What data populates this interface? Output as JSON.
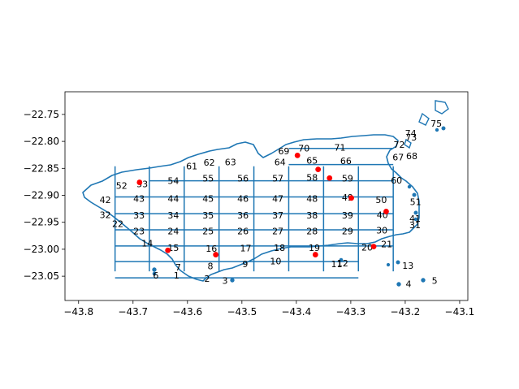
{
  "chart_data": {
    "type": "map",
    "title": "",
    "xlabel": "",
    "ylabel": "",
    "xlim": [
      -43.825,
      -43.085
    ],
    "ylim": [
      -23.095,
      -22.708
    ],
    "xticks": [
      -43.8,
      -43.7,
      -43.6,
      -43.5,
      -43.4,
      -43.3,
      -43.2,
      -43.1
    ],
    "yticks": [
      -23.05,
      -23.0,
      -22.95,
      -22.9,
      -22.85,
      -22.8,
      -22.75
    ],
    "xtick_labels": [
      "−43.8",
      "−43.7",
      "−43.6",
      "−43.5",
      "−43.4",
      "−43.3",
      "−43.2",
      "−43.1"
    ],
    "ytick_labels": [
      "−23.05",
      "−23.00",
      "−22.95",
      "−22.90",
      "−22.85",
      "−22.80",
      "−22.75"
    ],
    "colors": {
      "outline": "#1f77b4",
      "points": "#ff0000",
      "text": "#000000"
    },
    "grid_lines": {
      "vertical": [
        -43.733,
        -43.67,
        -43.606,
        -43.542,
        -43.478,
        -43.414,
        -43.35,
        -43.286,
        -43.222
      ],
      "horizontal": [
        -22.813,
        -22.843,
        -22.873,
        -22.903,
        -22.934,
        -22.964,
        -22.994,
        -23.023,
        -23.053
      ]
    },
    "cell_labels": [
      {
        "id": "1",
        "x": -43.62,
        "y": -23.048
      },
      {
        "id": "2",
        "x": -43.564,
        "y": -23.054
      },
      {
        "id": "3",
        "x": -43.531,
        "y": -23.058
      },
      {
        "id": "4",
        "x": -43.194,
        "y": -23.064
      },
      {
        "id": "5",
        "x": -43.146,
        "y": -23.058
      },
      {
        "id": "6",
        "x": -43.658,
        "y": -23.048
      },
      {
        "id": "7",
        "x": -43.617,
        "y": -23.033
      },
      {
        "id": "8",
        "x": -43.558,
        "y": -23.031
      },
      {
        "id": "9",
        "x": -43.494,
        "y": -23.027
      },
      {
        "id": "10",
        "x": -43.438,
        "y": -23.022
      },
      {
        "id": "11",
        "x": -43.326,
        "y": -23.027
      },
      {
        "id": "12",
        "x": -43.315,
        "y": -23.026
      },
      {
        "id": "13",
        "x": -43.195,
        "y": -23.03
      },
      {
        "id": "14",
        "x": -43.674,
        "y": -22.989
      },
      {
        "id": "15",
        "x": -43.626,
        "y": -22.997
      },
      {
        "id": "16",
        "x": -43.556,
        "y": -22.999
      },
      {
        "id": "17",
        "x": -43.493,
        "y": -22.998
      },
      {
        "id": "18",
        "x": -43.431,
        "y": -22.997
      },
      {
        "id": "19",
        "x": -43.367,
        "y": -22.997
      },
      {
        "id": "20",
        "x": -43.27,
        "y": -22.996
      },
      {
        "id": "21",
        "x": -43.234,
        "y": -22.99
      },
      {
        "id": "22",
        "x": -43.728,
        "y": -22.953
      },
      {
        "id": "23",
        "x": -43.689,
        "y": -22.966
      },
      {
        "id": "24",
        "x": -43.626,
        "y": -22.966
      },
      {
        "id": "25",
        "x": -43.562,
        "y": -22.966
      },
      {
        "id": "26",
        "x": -43.498,
        "y": -22.966
      },
      {
        "id": "27",
        "x": -43.434,
        "y": -22.966
      },
      {
        "id": "28",
        "x": -43.371,
        "y": -22.966
      },
      {
        "id": "29",
        "x": -43.306,
        "y": -22.966
      },
      {
        "id": "30",
        "x": -43.243,
        "y": -22.965
      },
      {
        "id": "31",
        "x": -43.182,
        "y": -22.955
      },
      {
        "id": "32",
        "x": -43.751,
        "y": -22.936
      },
      {
        "id": "33",
        "x": -43.689,
        "y": -22.937
      },
      {
        "id": "34",
        "x": -43.626,
        "y": -22.937
      },
      {
        "id": "35",
        "x": -43.562,
        "y": -22.937
      },
      {
        "id": "36",
        "x": -43.498,
        "y": -22.937
      },
      {
        "id": "37",
        "x": -43.434,
        "y": -22.937
      },
      {
        "id": "38",
        "x": -43.371,
        "y": -22.937
      },
      {
        "id": "39",
        "x": -43.306,
        "y": -22.937
      },
      {
        "id": "40",
        "x": -43.242,
        "y": -22.936
      },
      {
        "id": "41",
        "x": -43.182,
        "y": -22.943
      },
      {
        "id": "42",
        "x": -43.751,
        "y": -22.908
      },
      {
        "id": "43",
        "x": -43.689,
        "y": -22.906
      },
      {
        "id": "44",
        "x": -43.626,
        "y": -22.906
      },
      {
        "id": "45",
        "x": -43.562,
        "y": -22.906
      },
      {
        "id": "46",
        "x": -43.498,
        "y": -22.906
      },
      {
        "id": "47",
        "x": -43.434,
        "y": -22.906
      },
      {
        "id": "48",
        "x": -43.371,
        "y": -22.906
      },
      {
        "id": "49",
        "x": -43.306,
        "y": -22.904
      },
      {
        "id": "50",
        "x": -43.244,
        "y": -22.908
      },
      {
        "id": "51",
        "x": -43.181,
        "y": -22.912
      },
      {
        "id": "52",
        "x": -43.721,
        "y": -22.882
      },
      {
        "id": "53",
        "x": -43.683,
        "y": -22.879
      },
      {
        "id": "54",
        "x": -43.626,
        "y": -22.873
      },
      {
        "id": "55",
        "x": -43.562,
        "y": -22.868
      },
      {
        "id": "56",
        "x": -43.498,
        "y": -22.868
      },
      {
        "id": "57",
        "x": -43.434,
        "y": -22.868
      },
      {
        "id": "58",
        "x": -43.371,
        "y": -22.867
      },
      {
        "id": "59",
        "x": -43.306,
        "y": -22.868
      },
      {
        "id": "60",
        "x": -43.216,
        "y": -22.872
      },
      {
        "id": "61",
        "x": -43.592,
        "y": -22.846
      },
      {
        "id": "62",
        "x": -43.56,
        "y": -22.839
      },
      {
        "id": "63",
        "x": -43.521,
        "y": -22.838
      },
      {
        "id": "64",
        "x": -43.43,
        "y": -22.838
      },
      {
        "id": "65",
        "x": -43.371,
        "y": -22.835
      },
      {
        "id": "66",
        "x": -43.309,
        "y": -22.836
      },
      {
        "id": "67",
        "x": -43.213,
        "y": -22.829
      },
      {
        "id": "68",
        "x": -43.188,
        "y": -22.827
      },
      {
        "id": "69",
        "x": -43.423,
        "y": -22.818
      },
      {
        "id": "70",
        "x": -43.386,
        "y": -22.813
      },
      {
        "id": "71",
        "x": -43.32,
        "y": -22.811
      },
      {
        "id": "72",
        "x": -43.211,
        "y": -22.806
      },
      {
        "id": "73",
        "x": -43.189,
        "y": -22.792
      },
      {
        "id": "74",
        "x": -43.19,
        "y": -22.785
      },
      {
        "id": "75",
        "x": -43.143,
        "y": -22.767
      }
    ],
    "points": [
      {
        "x": -43.688,
        "y": -22.876
      },
      {
        "x": -43.636,
        "y": -23.002
      },
      {
        "x": -43.548,
        "y": -23.01
      },
      {
        "x": -43.398,
        "y": -22.826
      },
      {
        "x": -43.36,
        "y": -22.852
      },
      {
        "x": -43.339,
        "y": -22.868
      },
      {
        "x": -43.299,
        "y": -22.905
      },
      {
        "x": -43.235,
        "y": -22.93
      },
      {
        "x": -43.258,
        "y": -22.995
      },
      {
        "x": -43.365,
        "y": -23.01
      }
    ]
  }
}
